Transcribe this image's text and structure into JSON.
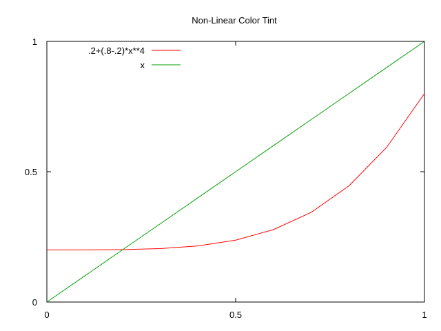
{
  "chart_data": {
    "type": "line",
    "title": "Non-Linear Color Tint",
    "xlabel": "",
    "ylabel": "",
    "xlim": [
      0,
      1
    ],
    "ylim": [
      0,
      1
    ],
    "grid": false,
    "legend_position": "top-left",
    "x_ticks": [
      {
        "value": 0,
        "label": "0"
      },
      {
        "value": 0.5,
        "label": "0.5"
      },
      {
        "value": 1,
        "label": "1"
      }
    ],
    "y_ticks": [
      {
        "value": 0,
        "label": "0"
      },
      {
        "value": 0.5,
        "label": "0.5"
      },
      {
        "value": 1,
        "label": "1"
      }
    ],
    "x": [
      0,
      0.1,
      0.2,
      0.3,
      0.4,
      0.5,
      0.6,
      0.7,
      0.8,
      0.9,
      1.0
    ],
    "series": [
      {
        "name": ".2+(.8-.2)*x**4",
        "color": "#ff0000",
        "values": [
          0.2,
          0.20006,
          0.20096,
          0.20486,
          0.21536,
          0.2375,
          0.27776,
          0.34406,
          0.44576,
          0.59366,
          0.8
        ]
      },
      {
        "name": "x",
        "color": "#00a000",
        "values": [
          0,
          0.1,
          0.2,
          0.3,
          0.4,
          0.5,
          0.6,
          0.7,
          0.8,
          0.9,
          1.0
        ]
      }
    ]
  }
}
